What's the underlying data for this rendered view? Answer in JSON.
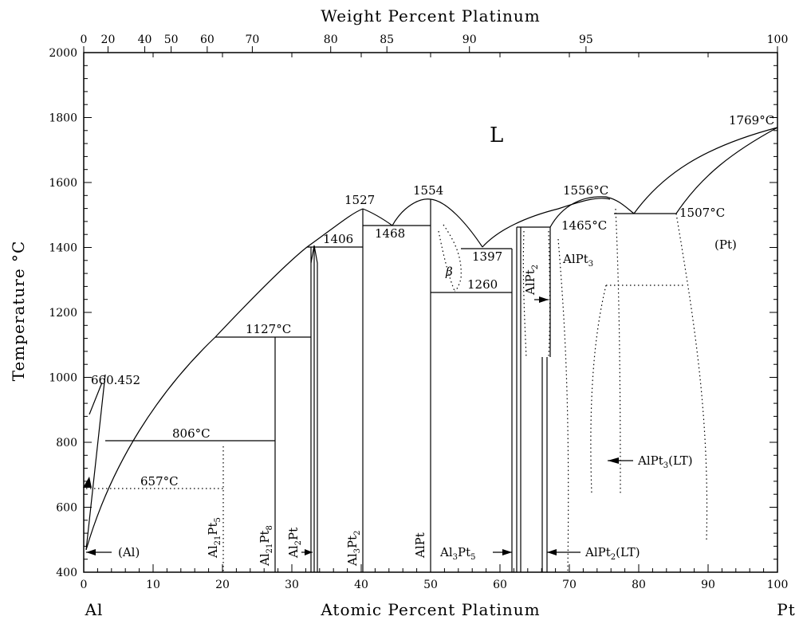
{
  "axes": {
    "top_title": "Weight Percent Platinum",
    "bottom_title": "Atomic Percent Platinum",
    "left_title": "Temperature °C",
    "left_element": "Al",
    "right_element": "Pt",
    "x_ticks": [
      "0",
      "10",
      "20",
      "30",
      "40",
      "50",
      "60",
      "70",
      "80",
      "90",
      "100"
    ],
    "y_ticks": [
      "400",
      "600",
      "800",
      "1000",
      "1200",
      "1400",
      "1600",
      "1800",
      "2000"
    ],
    "top_ticks": [
      {
        "label": "0",
        "at": 0
      },
      {
        "label": "20",
        "at": 3.5
      },
      {
        "label": "40",
        "at": 8.8
      },
      {
        "label": "50",
        "at": 12.6
      },
      {
        "label": "60",
        "at": 17.8
      },
      {
        "label": "70",
        "at": 24.3
      },
      {
        "label": "80",
        "at": 35.6
      },
      {
        "label": "85",
        "at": 43.7
      },
      {
        "label": "90",
        "at": 55.6
      },
      {
        "label": "95",
        "at": 72.4
      },
      {
        "label": "100",
        "at": 100
      }
    ],
    "x_range": [
      0,
      100
    ],
    "y_range": [
      400,
      2000
    ]
  },
  "labels": {
    "liquid": "L",
    "pt_phase": "(Pt)",
    "al_phase": "(Al)",
    "beta": "β",
    "t_al_melt": "660.452",
    "t_657": "657",
    "t_806": "806",
    "t_1127": "1127",
    "t_1406": "1406",
    "t_1527": "1527",
    "t_1468": "1468",
    "t_1554": "1554",
    "t_1397": "1397",
    "t_1260": "1260",
    "t_1556": "1556",
    "t_1465": "1465",
    "t_1507": "1507",
    "t_1769": "1769",
    "deg_c": "°C",
    "alpt_al": "AlPt",
    "alpt3_al": "AlPt",
    "alpt3_sub": "3",
    "alpt3_lt_al": "AlPt",
    "alpt3_lt_sub": "3",
    "alpt3_lt_suffix": "(LT)",
    "alpt2_lt_al": "AlPt",
    "alpt2_lt_sub": "2",
    "alpt2_lt_suffix": "(LT)",
    "al3pt5": {
      "a": "Al",
      "a_sub": "3",
      "b": "Pt",
      "b_sub": "5"
    },
    "al21pt5": {
      "a": "Al",
      "a_sub": "21",
      "b": "Pt",
      "b_sub": "5"
    },
    "al21pt8": {
      "a": "Al",
      "a_sub": "21",
      "b": "Pt",
      "b_sub": "8"
    },
    "al2pt": {
      "a": "Al",
      "a_sub": "2",
      "b": "Pt",
      "b_sub": ""
    },
    "al3pt2": {
      "a": "Al",
      "a_sub": "3",
      "b": "Pt",
      "b_sub": "2"
    },
    "alpt_v": {
      "a": "AlPt",
      "a_sub": "",
      "b": "",
      "b_sub": ""
    },
    "alpt2": {
      "a": "AlPt",
      "a_sub": "2",
      "b": "",
      "b_sub": ""
    }
  }
}
